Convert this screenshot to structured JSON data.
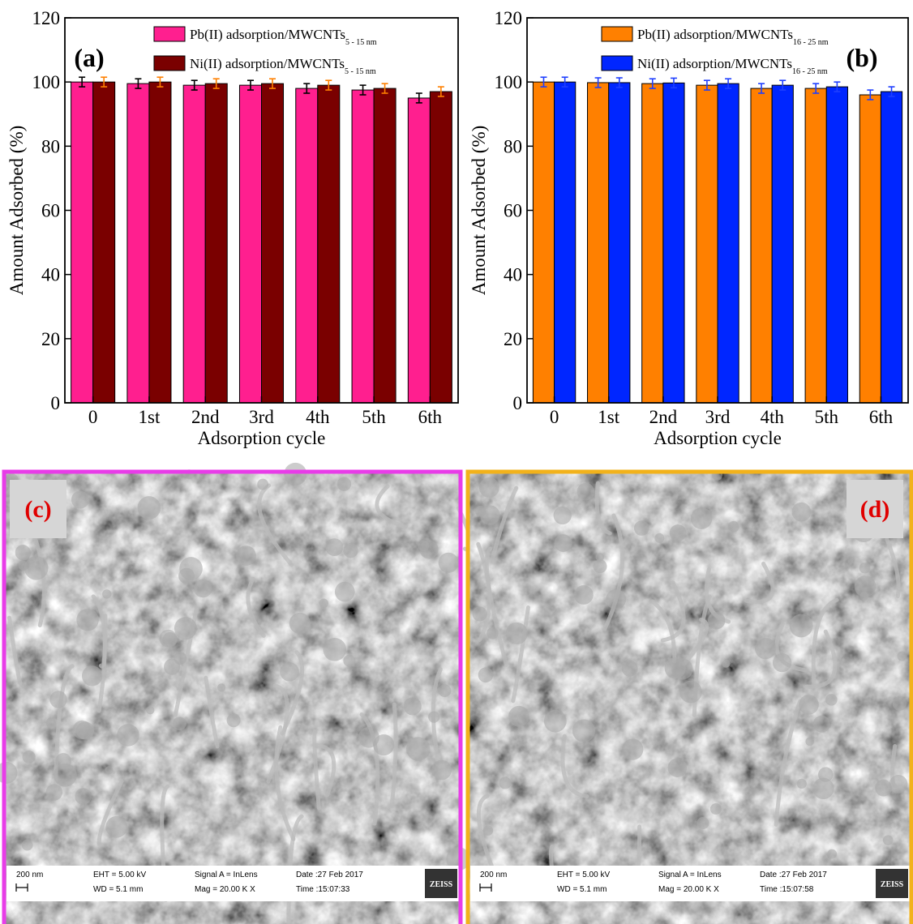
{
  "chart_data": [
    {
      "type": "bar",
      "annotation": "(a)",
      "x_label": "Adsorption cycle",
      "y_label": "Amount Adsorbed (%)",
      "categories": [
        "0",
        "1st",
        "2nd",
        "3rd",
        "4th",
        "5th",
        "6th"
      ],
      "series": [
        {
          "name": "Pb(II) adsorption/MWCNTs",
          "subscript": "5 - 15 nm",
          "color": "#ff1f8f",
          "error_color": "#000000",
          "values": [
            100,
            99.5,
            99,
            99,
            98,
            97.5,
            95
          ],
          "errors": [
            1.5,
            1.5,
            1.5,
            1.5,
            1.5,
            1.5,
            1.5
          ]
        },
        {
          "name": "Ni(II) adsorption/MWCNTs",
          "subscript": "5 - 15 nm",
          "color": "#7a0000",
          "error_color": "#ff8000",
          "values": [
            100,
            100,
            99.5,
            99.5,
            99,
            98,
            97
          ],
          "errors": [
            1.5,
            1.5,
            1.5,
            1.5,
            1.5,
            1.5,
            1.5
          ]
        }
      ],
      "ylim": [
        0,
        120
      ],
      "yticks": [
        0,
        20,
        40,
        60,
        80,
        100,
        120
      ]
    },
    {
      "type": "bar",
      "annotation": "(b)",
      "x_label": "Adsorption cycle",
      "y_label": "Amount Adsorbed (%)",
      "categories": [
        "0",
        "1st",
        "2nd",
        "3rd",
        "4th",
        "5th",
        "6th"
      ],
      "series": [
        {
          "name": "Pb(II) adsorption/MWCNTs",
          "subscript": "16 - 25 nm",
          "color": "#ff8000",
          "error_color": "#1f3fff",
          "values": [
            100,
            99.8,
            99.5,
            99,
            98,
            98,
            96
          ],
          "errors": [
            1.5,
            1.5,
            1.5,
            1.5,
            1.5,
            1.5,
            1.5
          ]
        },
        {
          "name": "Ni(II) adsorption/MWCNTs",
          "subscript": "16 - 25 nm",
          "color": "#0026ff",
          "error_color": "#1f3fff",
          "values": [
            100,
            99.8,
            99.7,
            99.5,
            99,
            98.5,
            97
          ],
          "errors": [
            1.5,
            1.5,
            1.5,
            1.5,
            1.5,
            1.5,
            1.5
          ]
        }
      ],
      "ylim": [
        0,
        120
      ],
      "yticks": [
        0,
        20,
        40,
        60,
        80,
        100,
        120
      ]
    }
  ],
  "images": [
    {
      "label": "(c)",
      "scale": "200 nm",
      "eht": "EHT = 5.00 kV",
      "wd": "WD = 5.1 mm",
      "signal": "Signal A = InLens",
      "mag": "Mag =  20.00 K X",
      "date": "Date :27 Feb 2017",
      "time": "Time :15:07:33",
      "brand": "ZEISS"
    },
    {
      "label": "(d)",
      "scale": "200 nm",
      "eht": "EHT = 5.00 kV",
      "wd": "WD = 5.1 mm",
      "signal": "Signal A = InLens",
      "mag": "Mag =  20.00 K X",
      "date": "Date :27 Feb 2017",
      "time": "Time :15:07:58",
      "brand": "ZEISS"
    }
  ]
}
